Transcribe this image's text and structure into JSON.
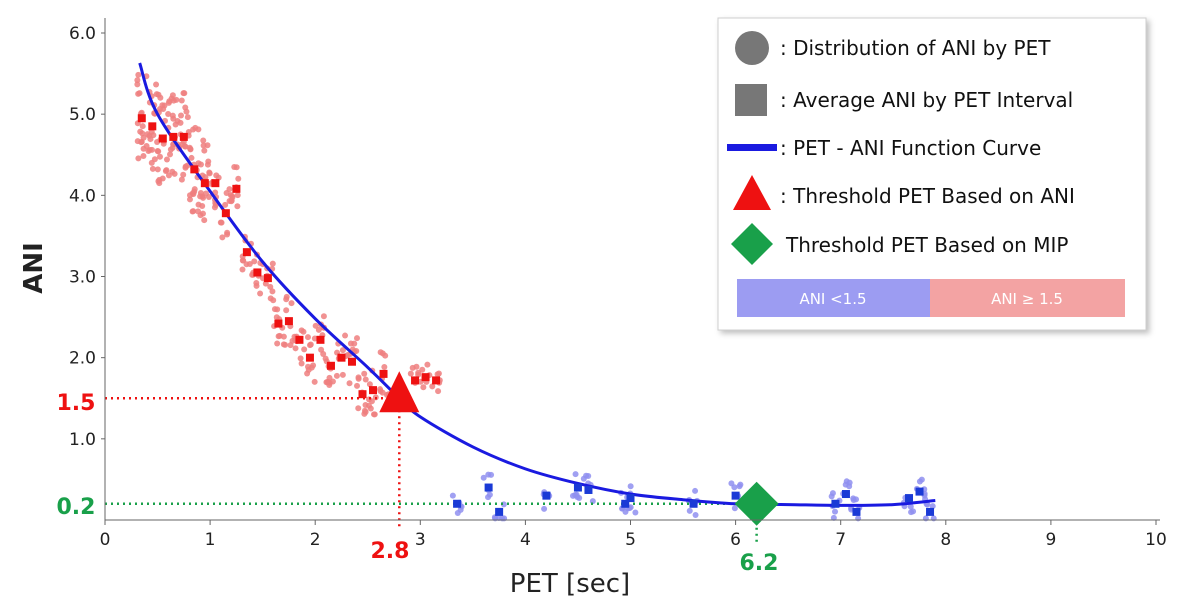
{
  "chart_data": {
    "type": "scatter",
    "title": "",
    "xlabel": "PET [sec]",
    "ylabel": "ANI",
    "xlim": [
      0,
      10
    ],
    "ylim": [
      0,
      6.1
    ],
    "xticks": [
      "0",
      "1",
      "2",
      "3",
      "4",
      "5",
      "6",
      "7",
      "8",
      "9",
      "10"
    ],
    "yticks": [
      "1.0",
      "2.0",
      "3.0",
      "4.0",
      "5.0",
      "6.0"
    ],
    "ytick_values": [
      1,
      2,
      3,
      4,
      5,
      6
    ],
    "grid": false,
    "legend_position": "top-right",
    "colors": {
      "high": "#ef7f7f",
      "low": "#8f8ff0",
      "avg_high": "#ee1111",
      "avg_low": "#1a3ad6",
      "curve": "#1a1ae0",
      "ani_threshold": "#ee1111",
      "mip_threshold": "#19a04a"
    },
    "series": [
      {
        "name": "Average ANI by PET Interval",
        "x": [
          0.35,
          0.45,
          0.55,
          0.65,
          0.75,
          0.85,
          0.95,
          1.05,
          1.15,
          1.25,
          1.35,
          1.45,
          1.55,
          1.65,
          1.75,
          1.85,
          1.95,
          2.05,
          2.15,
          2.25,
          2.35,
          2.45,
          2.55,
          2.65,
          2.95,
          3.05,
          3.15,
          3.35,
          3.65,
          3.75,
          4.2,
          4.5,
          4.6,
          4.95,
          5.0,
          5.6,
          6.0,
          6.95,
          7.05,
          7.15,
          7.65,
          7.75,
          7.85
        ],
        "y": [
          4.95,
          4.85,
          4.7,
          4.72,
          4.72,
          4.32,
          4.15,
          4.15,
          3.78,
          4.08,
          3.3,
          3.05,
          2.98,
          2.42,
          2.45,
          2.22,
          2.0,
          2.22,
          1.9,
          2.0,
          1.95,
          1.55,
          1.6,
          1.8,
          1.72,
          1.76,
          1.72,
          0.2,
          0.4,
          0.1,
          0.3,
          0.4,
          0.37,
          0.2,
          0.27,
          0.2,
          0.3,
          0.2,
          0.32,
          0.1,
          0.27,
          0.35,
          0.1
        ]
      },
      {
        "name": "PET - ANI Function Curve",
        "x": [
          0.33,
          0.5,
          1.0,
          1.5,
          2.0,
          2.5,
          2.8,
          3.0,
          3.5,
          4.0,
          4.5,
          5.0,
          5.5,
          6.0,
          6.5,
          7.0,
          7.5,
          7.9
        ],
        "y": [
          5.63,
          5.0,
          4.05,
          3.18,
          2.48,
          1.88,
          1.5,
          1.27,
          0.9,
          0.63,
          0.45,
          0.32,
          0.25,
          0.2,
          0.19,
          0.18,
          0.19,
          0.24
        ]
      },
      {
        "name": "Threshold PET Based on ANI",
        "x": [
          2.8
        ],
        "y": [
          1.5
        ]
      },
      {
        "name": "Threshold PET Based on MIP",
        "x": [
          6.2
        ],
        "y": [
          0.2
        ]
      }
    ],
    "annotations": {
      "ani_x": "2.8",
      "ani_y": "1.5",
      "mip_x": "6.2",
      "mip_y": "0.2"
    },
    "legend": [
      ": Distribution of ANI by PET",
      ": Average ANI by PET Interval",
      ": PET - ANI Function Curve",
      ": Threshold PET Based on ANI",
      "Threshold PET Based on MIP"
    ],
    "bands": [
      "ANI <1.5",
      "ANI ≥ 1.5"
    ]
  }
}
